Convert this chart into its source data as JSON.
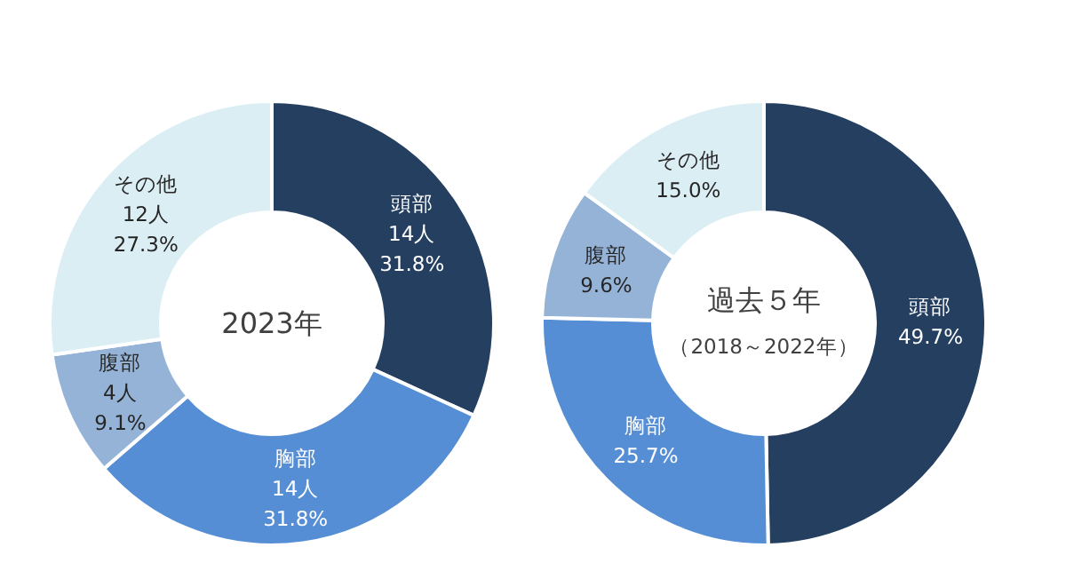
{
  "chart_data": [
    {
      "type": "donut",
      "title": "2023年",
      "categories": [
        "頭部",
        "胸部",
        "腹部",
        "その他"
      ],
      "values": [
        14,
        14,
        4,
        12
      ],
      "colors": [
        "#243f60",
        "#558ed5",
        "#95b3d7",
        "#dbeef4"
      ],
      "value_labels": [
        "14人\n31.8%",
        "14人\n31.8%",
        "4人\n9.1%",
        "12人\n27.3%"
      ]
    },
    {
      "type": "donut",
      "title": "過去５年",
      "subtitle": "（2018～2022年）",
      "categories": [
        "頭部",
        "胸部",
        "腹部",
        "その他"
      ],
      "values": [
        49.7,
        25.7,
        9.6,
        15.0
      ],
      "colors": [
        "#243f60",
        "#558ed5",
        "#95b3d7",
        "#dbeef4"
      ],
      "value_labels": [
        "49.7%",
        "25.7%",
        "9.6%",
        "15.0%"
      ]
    }
  ]
}
